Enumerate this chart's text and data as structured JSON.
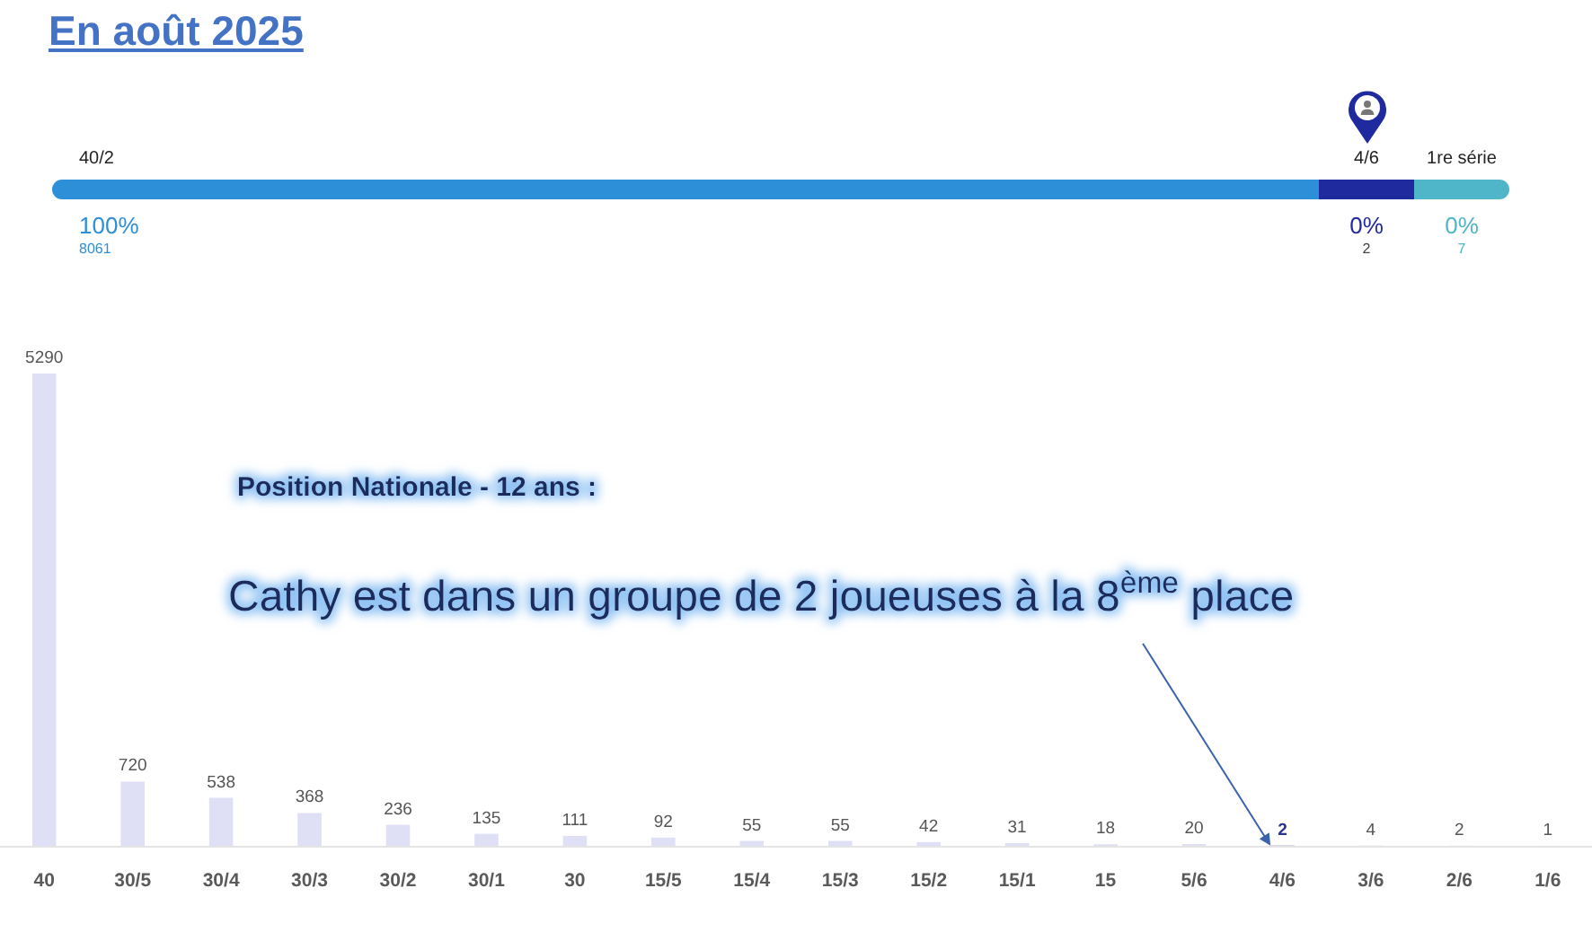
{
  "chart_data": [
    {
      "type": "other",
      "title": "En août 2025",
      "categories": [
        "40/2",
        "4/6",
        "1re série"
      ],
      "values": [
        100,
        0,
        0
      ],
      "colors": [
        "#2e8fd9",
        "#1f2a9e",
        "#4fb5c8"
      ],
      "value_labels": [
        "100%",
        "0%",
        "0%"
      ],
      "annotations": [
        "8061",
        "2",
        "7"
      ]
    },
    {
      "type": "bar",
      "tick_labels": "x",
      "data_labels": true,
      "categories": [
        "40",
        "30/5",
        "30/4",
        "30/3",
        "30/2",
        "30/1",
        "30",
        "15/5",
        "15/4",
        "15/3",
        "15/2",
        "15/1",
        "15",
        "5/6",
        "4/6",
        "3/6",
        "2/6",
        "1/6"
      ],
      "values": [
        5290,
        720,
        538,
        368,
        236,
        135,
        111,
        92,
        55,
        55,
        42,
        31,
        18,
        20,
        2,
        4,
        2,
        1
      ],
      "colors": [
        "#dfe0f5",
        "#dfe0f5",
        "#dfe0f5",
        "#dfe0f5",
        "#dfe0f5",
        "#dfe0f5",
        "#dfe0f5",
        "#dfe0f5",
        "#dfe0f5",
        "#dfe0f5",
        "#dfe0f5",
        "#dfe0f5",
        "#dfe0f5",
        "#dfe0f5",
        "#2b3690",
        "#dfe0f5",
        "#dfe0f5",
        "#dfe0f5"
      ],
      "annotations": [
        "Position Nationale - 12 ans :",
        {
          "text": "Cathy est dans un groupe de 2 joueuses à la 8$^{ème}$ place",
          "x": "4/6",
          "y": 2
        }
      ]
    }
  ]
}
